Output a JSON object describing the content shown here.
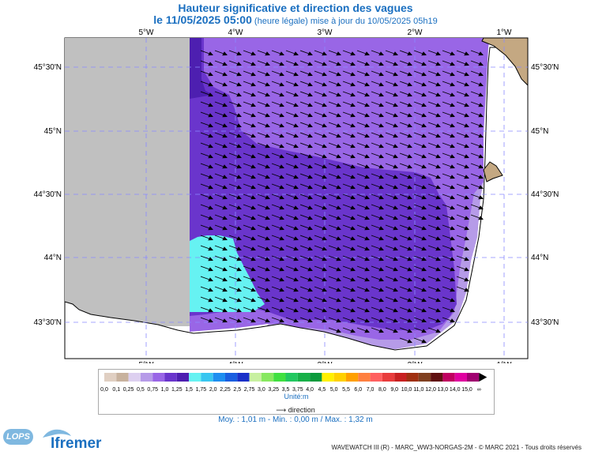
{
  "header": {
    "title": "Hauteur significative et direction des vagues",
    "date_line": "le 11/05/2025 05:00",
    "date_note": "(heure légale) mise à jour du 10/05/2025 05h19"
  },
  "map": {
    "lon_labels": [
      "5°W",
      "4°W",
      "3°W",
      "2°W",
      "1°W"
    ],
    "lat_labels": [
      "45°30'N",
      "45°N",
      "44°30'N",
      "44°N",
      "43°30'N"
    ],
    "colors": {
      "land": "#c4a882",
      "no_data": "#c0c0c0",
      "wave_0_75": "#9966e6",
      "wave_1_0": "#6a35cc",
      "wave_1_25": "#4d1fb0",
      "wave_1_5": "#66f2f2",
      "coast_light": "#b69be8",
      "arrow": "#000000"
    }
  },
  "legend": {
    "labels": [
      "0,0",
      "0,1",
      "0,25",
      "0,5",
      "0,75",
      "1,0",
      "1,25",
      "1,5",
      "1,75",
      "2,0",
      "2,25",
      "2,5",
      "2,75",
      "3,0",
      "3,25",
      "3,5",
      "3,75",
      "4,0",
      "4,5",
      "5,0",
      "5,5",
      "6,0",
      "7,0",
      "8,0",
      "9,0",
      "10,0",
      "11,0",
      "12,0",
      "13,0",
      "14,0",
      "15,0",
      "∞"
    ],
    "colors": [
      "#e0cfc2",
      "#c8b29e",
      "#ddd0f0",
      "#b69be8",
      "#9966e6",
      "#6a35cc",
      "#4d1fb0",
      "#66f2f2",
      "#38c6f0",
      "#1e8ef0",
      "#1a5ee0",
      "#1a30c8",
      "#c8f0a0",
      "#88e860",
      "#40e040",
      "#22c860",
      "#18b048",
      "#0c9a3c",
      "#fff000",
      "#ffd000",
      "#ffa000",
      "#ff8040",
      "#ff6060",
      "#e83c3c",
      "#c82020",
      "#a03010",
      "#804020",
      "#601010",
      "#c00060",
      "#e000a0",
      "#a00070"
    ],
    "unit": "Unité:m",
    "direction_label": "direction"
  },
  "stats": "Moy. : 1,01 m   -   Min. : 0,00 m / Max. : 1,32 m",
  "footer": "WAVEWATCH III (R) - MARC_WW3-NORGAS-2M - © MARC 2021 - Tous droits réservés",
  "logos": {
    "lops": "LOPS",
    "ifremer": "Ifremer"
  }
}
